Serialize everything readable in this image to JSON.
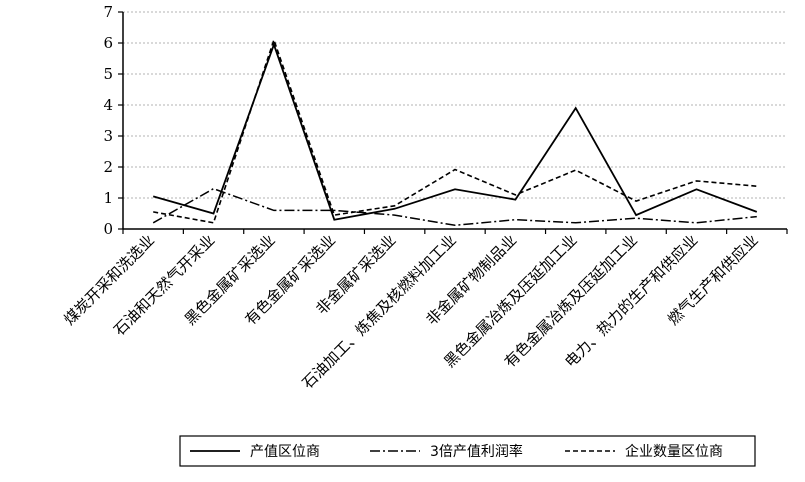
{
  "chart_data": {
    "type": "line",
    "title": "",
    "xlabel": "",
    "ylabel": "",
    "ylim": [
      0,
      7
    ],
    "yticks": [
      "0",
      "1",
      "2",
      "3",
      "4",
      "5",
      "6",
      "7"
    ],
    "grid": true,
    "legend_position": "bottom",
    "categories": [
      "煤炭开采和洗选业",
      "石油和天然气开采业",
      "黑色金属矿采选业",
      "有色金属矿采选业",
      "非金属矿采选业",
      "石油加工、炼焦及核燃料加工业",
      "非金属矿物制品业",
      "黑色金属冶炼及压延加工业",
      "有色金属冶炼及压延加工业",
      "电力、热力的生产和供应业",
      "燃气生产和供应业"
    ],
    "series": [
      {
        "name": "产值区位商",
        "style": "solid",
        "values": [
          1.05,
          0.5,
          5.95,
          0.3,
          0.65,
          1.28,
          0.95,
          3.9,
          0.45,
          1.28,
          0.55
        ]
      },
      {
        "name": "3倍产值利润率",
        "style": "dashdot",
        "values": [
          0.2,
          1.3,
          0.6,
          0.6,
          0.45,
          0.12,
          0.3,
          0.2,
          0.35,
          0.2,
          0.4
        ]
      },
      {
        "name": "企业数量区位商",
        "style": "dashed",
        "values": [
          0.55,
          0.2,
          6.1,
          0.45,
          0.75,
          1.92,
          1.1,
          1.9,
          0.9,
          1.55,
          1.38
        ]
      }
    ]
  }
}
